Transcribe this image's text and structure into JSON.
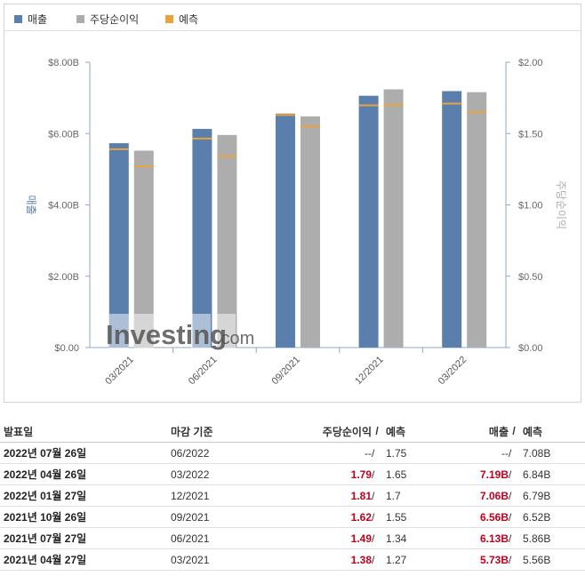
{
  "legend": [
    {
      "label": "매출",
      "color": "#5b7fad"
    },
    {
      "label": "주당순이익",
      "color": "#adadad"
    },
    {
      "label": "예측",
      "color": "#e8a33d"
    }
  ],
  "watermark": {
    "brand": "Investing",
    "suffix": ".com"
  },
  "chart_data": {
    "type": "bar",
    "categories": [
      "03/2021",
      "06/2021",
      "09/2021",
      "12/2021",
      "03/2022"
    ],
    "series": [
      {
        "name": "매출",
        "axis": "left",
        "color": "#5b7fad",
        "values": [
          5.73,
          6.13,
          6.56,
          7.06,
          7.19
        ]
      },
      {
        "name": "주당순이익",
        "axis": "right",
        "color": "#adadad",
        "values": [
          1.38,
          1.49,
          1.62,
          1.81,
          1.79
        ]
      }
    ],
    "forecast": {
      "name": "예측",
      "color": "#e8a33d",
      "revenue": [
        5.56,
        5.86,
        6.52,
        6.79,
        6.84
      ],
      "eps": [
        1.27,
        1.34,
        1.55,
        1.7,
        1.65
      ]
    },
    "y_left": {
      "label": "매출",
      "min": 0,
      "max": 8,
      "ticks": [
        "$0.00",
        "$2.00B",
        "$4.00B",
        "$6.00B",
        "$8.00B"
      ]
    },
    "y_right": {
      "label": "주당순이익",
      "min": 0,
      "max": 2,
      "ticks": [
        "$0.00",
        "$0.50",
        "$1.00",
        "$1.50",
        "$2.00"
      ]
    },
    "grid": false,
    "legend_position": "top-left"
  },
  "table": {
    "headers": {
      "date": "발표일",
      "period": "마감 기준",
      "eps": "주당순이익",
      "slash": "/",
      "forecast": "예측",
      "revenue": "매출"
    },
    "rows": [
      {
        "date": "2022년 07월 26일",
        "period": "06/2022",
        "eps": "--",
        "eps_fc": "1.75",
        "rev": "--",
        "rev_fc": "7.08B",
        "beat": false
      },
      {
        "date": "2022년 04월 26일",
        "period": "03/2022",
        "eps": "1.79",
        "eps_fc": "1.65",
        "rev": "7.19B",
        "rev_fc": "6.84B",
        "beat": true
      },
      {
        "date": "2022년 01월 27일",
        "period": "12/2021",
        "eps": "1.81",
        "eps_fc": "1.7",
        "rev": "7.06B",
        "rev_fc": "6.79B",
        "beat": true
      },
      {
        "date": "2021년 10월 26일",
        "period": "09/2021",
        "eps": "1.62",
        "eps_fc": "1.55",
        "rev": "6.56B",
        "rev_fc": "6.52B",
        "beat": true
      },
      {
        "date": "2021년 07월 27일",
        "period": "06/2021",
        "eps": "1.49",
        "eps_fc": "1.34",
        "rev": "6.13B",
        "rev_fc": "5.86B",
        "beat": true
      },
      {
        "date": "2021년 04월 27일",
        "period": "03/2021",
        "eps": "1.38",
        "eps_fc": "1.27",
        "rev": "5.73B",
        "rev_fc": "5.56B",
        "beat": true
      }
    ]
  }
}
